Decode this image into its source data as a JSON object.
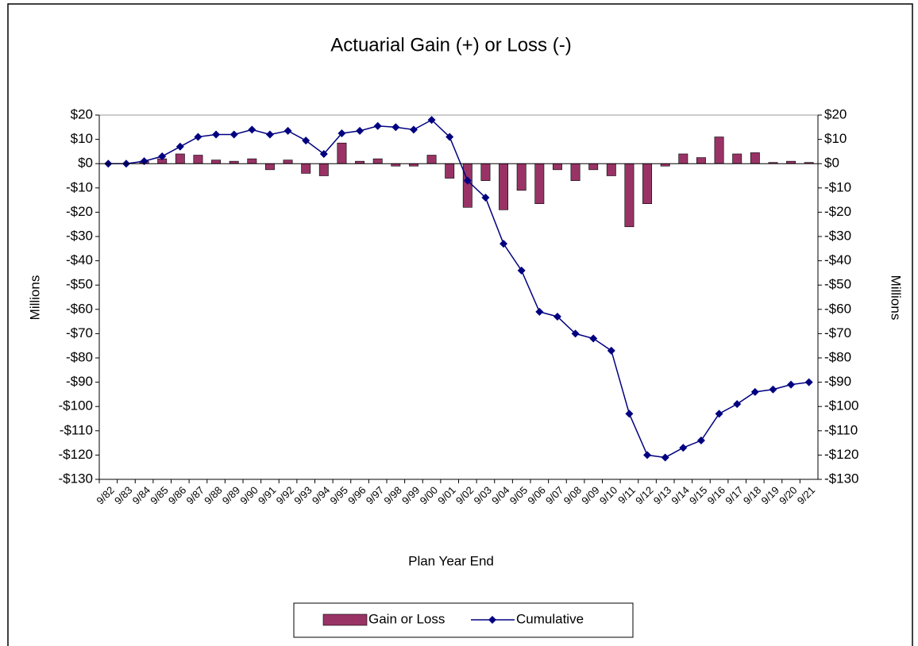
{
  "chart_data": {
    "type": "bar-line",
    "title": "Actuarial Gain (+) or Loss (-)",
    "x_label": "Plan Year End",
    "y_label": "Millions",
    "y2_label": "Millions",
    "categories": [
      "9/82",
      "9/83",
      "9/84",
      "9/85",
      "9/86",
      "9/87",
      "9/88",
      "9/89",
      "9/90",
      "9/91",
      "9/92",
      "9/93",
      "9/94",
      "9/95",
      "9/96",
      "9/97",
      "9/98",
      "9/99",
      "9/00",
      "9/01",
      "9/02",
      "9/03",
      "9/04",
      "9/05",
      "9/06",
      "9/07",
      "9/08",
      "9/09",
      "9/10",
      "9/11",
      "9/12",
      "9/13",
      "9/14",
      "9/15",
      "9/16",
      "9/17",
      "9/18",
      "9/19",
      "9/20",
      "9/21"
    ],
    "series": [
      {
        "name": "Gain or Loss",
        "type": "bar",
        "color": "#993366",
        "values": [
          0,
          0,
          1,
          2,
          4,
          3.5,
          1.5,
          1,
          2,
          -2.5,
          1.5,
          -4,
          -5,
          8.5,
          1,
          2,
          -1,
          -1,
          3.5,
          -6,
          -18,
          -7,
          -19,
          -11,
          -16.5,
          -2.5,
          -7,
          -2.5,
          -5,
          -26,
          -16.5,
          -1,
          4,
          2.5,
          11,
          4,
          4.5,
          0.5,
          1,
          0.5
        ]
      },
      {
        "name": "Cumulative",
        "type": "line",
        "axis": "y2",
        "color": "#000080",
        "values": [
          0,
          0,
          1,
          3,
          7,
          11,
          12,
          12,
          14,
          12,
          13.5,
          9.5,
          4,
          12.5,
          13.5,
          15.5,
          15,
          14,
          18,
          11,
          -7,
          -14,
          -33,
          -44,
          -61,
          -63,
          -70,
          -72,
          -77,
          -103,
          -120,
          -121,
          -117,
          -114,
          -103,
          -99,
          -94,
          -93,
          -91,
          -90
        ]
      }
    ],
    "ylim": [
      -130,
      20
    ],
    "yticks": [
      {
        "value": 20,
        "label": "$20"
      },
      {
        "value": 10,
        "label": "$10"
      },
      {
        "value": 0,
        "label": "$0"
      },
      {
        "value": -10,
        "label": "-$10"
      },
      {
        "value": -20,
        "label": "-$20"
      },
      {
        "value": -30,
        "label": "-$30"
      },
      {
        "value": -40,
        "label": "-$40"
      },
      {
        "value": -50,
        "label": "-$50"
      },
      {
        "value": -60,
        "label": "-$60"
      },
      {
        "value": -70,
        "label": "-$70"
      },
      {
        "value": -80,
        "label": "-$80"
      },
      {
        "value": -90,
        "label": "-$90"
      },
      {
        "value": -100,
        "label": "-$100"
      },
      {
        "value": -110,
        "label": "-$110"
      },
      {
        "value": -120,
        "label": "-$120"
      },
      {
        "value": -130,
        "label": "-$130"
      }
    ],
    "y2lim": [
      -130,
      20
    ],
    "y2ticks": [
      {
        "value": 20,
        "label": "$20"
      },
      {
        "value": 10,
        "label": "$10"
      },
      {
        "value": 0,
        "label": "$0"
      },
      {
        "value": -10,
        "label": "-$10"
      },
      {
        "value": -20,
        "label": "-$20"
      },
      {
        "value": -30,
        "label": "-$30"
      },
      {
        "value": -40,
        "label": "-$40"
      },
      {
        "value": -50,
        "label": "-$50"
      },
      {
        "value": -60,
        "label": "-$60"
      },
      {
        "value": -70,
        "label": "-$70"
      },
      {
        "value": -80,
        "label": "-$80"
      },
      {
        "value": -90,
        "label": "-$90"
      },
      {
        "value": -100,
        "label": "-$100"
      },
      {
        "value": -110,
        "label": "-$110"
      },
      {
        "value": -120,
        "label": "-$120"
      },
      {
        "value": -130,
        "label": "-$130"
      }
    ],
    "grid": false,
    "legend": "bottom"
  }
}
